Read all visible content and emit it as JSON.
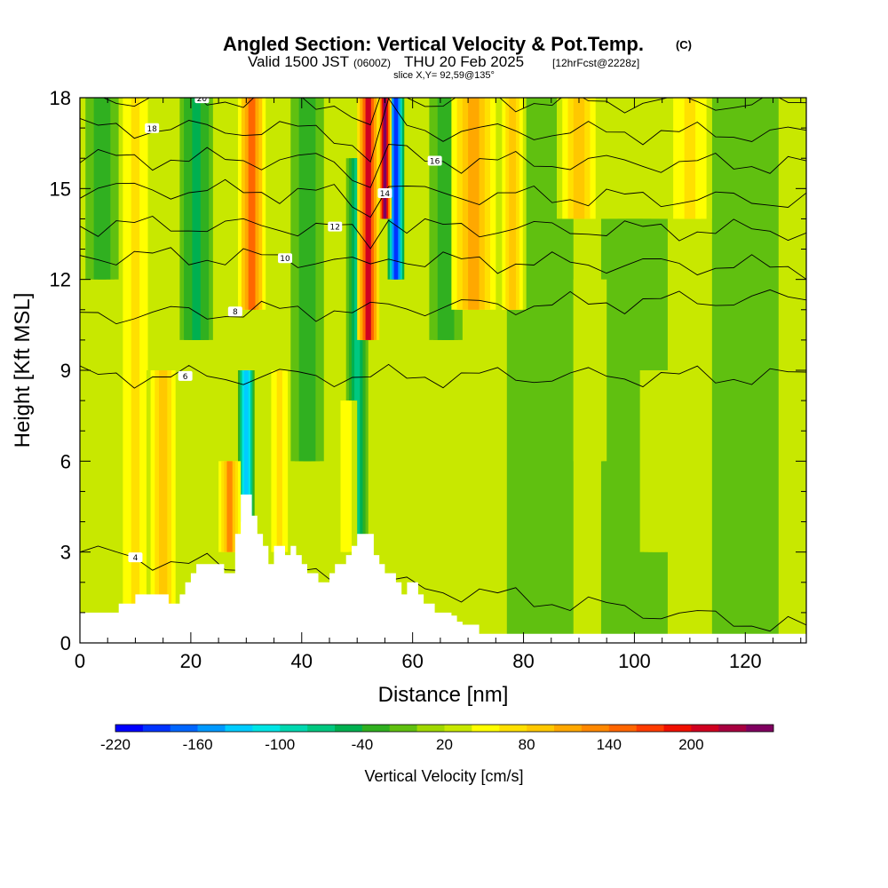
{
  "chart_data": {
    "type": "heatmap",
    "title": "Angled Section: Vertical Velocity & Pot.Temp.",
    "title_mark": "(C)",
    "subtitle_main": "Valid 1500 JST",
    "subtitle_zulu": "(0600Z)",
    "subtitle_date": "THU 20 Feb 2025",
    "subtitle_fcst": "[12hrFcst@2228z]",
    "slice_label": "slice X,Y= 92,59@135°",
    "xlabel": "Distance [nm]",
    "ylabel": "Height [Kft MSL]",
    "xlim": [
      0,
      131
    ],
    "ylim": [
      0,
      18
    ],
    "x_ticks": [
      0,
      20,
      40,
      60,
      80,
      100,
      120
    ],
    "y_ticks": [
      0,
      3,
      6,
      9,
      12,
      15,
      18
    ],
    "colorbar": {
      "label": "Vertical Velocity [cm/s]",
      "min": -220,
      "max": 260,
      "step": 20,
      "ticks": [
        -220,
        -160,
        -100,
        -40,
        20,
        80,
        140,
        200
      ],
      "colors": [
        "#0000ff",
        "#0033ff",
        "#0066ff",
        "#0099ff",
        "#00ccff",
        "#00e5e5",
        "#00d8b0",
        "#00c880",
        "#00b050",
        "#30b020",
        "#60c010",
        "#a0d800",
        "#c8e800",
        "#ffff00",
        "#ffe000",
        "#ffc800",
        "#ffa800",
        "#ff8800",
        "#ff6600",
        "#ff3c00",
        "#f01000",
        "#d00020",
        "#a80040",
        "#800060"
      ]
    },
    "terrain": {
      "x": [
        0,
        6,
        7,
        10,
        15,
        16,
        18,
        19,
        20,
        21,
        22,
        23,
        25,
        26,
        28,
        29,
        30,
        31,
        32,
        33,
        34,
        35,
        36,
        37,
        38,
        39,
        40,
        41,
        42,
        43,
        44,
        45,
        46,
        47,
        48,
        49,
        50,
        51,
        52,
        53,
        54,
        55,
        56,
        57,
        58,
        59,
        60,
        61,
        62,
        63,
        64,
        65,
        66,
        67,
        68,
        69,
        70,
        72,
        131
      ],
      "h": [
        1.0,
        1.0,
        1.3,
        1.6,
        1.6,
        1.3,
        1.6,
        2.0,
        2.3,
        2.6,
        2.6,
        2.6,
        2.6,
        2.3,
        3.6,
        4.9,
        4.9,
        4.2,
        3.6,
        3.2,
        2.6,
        3.2,
        3.2,
        2.9,
        3.2,
        2.9,
        2.6,
        2.3,
        2.3,
        2.0,
        2.0,
        2.3,
        2.6,
        2.6,
        2.9,
        3.2,
        3.6,
        3.6,
        3.6,
        2.9,
        2.6,
        2.3,
        2.3,
        2.0,
        1.6,
        2.0,
        2.0,
        1.6,
        1.3,
        1.3,
        1.0,
        1.0,
        1.0,
        0.9,
        0.7,
        0.6,
        0.6,
        0.3,
        0.3
      ]
    },
    "updraft_bands": [
      {
        "x": 10,
        "ybot": 0,
        "ytop": 18,
        "w": 60,
        "width": 3
      },
      {
        "x": 15,
        "ybot": 0,
        "ytop": 9,
        "w": 80,
        "width": 3
      },
      {
        "x": 27,
        "ybot": 3,
        "ytop": 6,
        "w": 120,
        "width": 2
      },
      {
        "x": 31,
        "ybot": 11,
        "ytop": 18,
        "w": 150,
        "width": 2.5
      },
      {
        "x": 36,
        "ybot": 3,
        "ytop": 9,
        "w": 60,
        "width": 2
      },
      {
        "x": 52,
        "ybot": 10,
        "ytop": 18,
        "w": 200,
        "width": 2
      },
      {
        "x": 55,
        "ybot": 14,
        "ytop": 18,
        "w": 250,
        "width": 1.2
      },
      {
        "x": 48,
        "ybot": 3,
        "ytop": 8,
        "w": 50,
        "width": 2
      },
      {
        "x": 71,
        "ybot": 11,
        "ytop": 18,
        "w": 100,
        "width": 4
      },
      {
        "x": 78,
        "ybot": 11,
        "ytop": 18,
        "w": 80,
        "width": 2.5
      },
      {
        "x": 90,
        "ybot": 14,
        "ytop": 18,
        "w": 80,
        "width": 4
      },
      {
        "x": 110,
        "ybot": 14,
        "ytop": 18,
        "w": 60,
        "width": 4
      },
      {
        "x": 92,
        "ybot": 6,
        "ytop": 12,
        "w": 30,
        "width": 3
      },
      {
        "x": 104,
        "ybot": 3,
        "ytop": 9,
        "w": 30,
        "width": 3
      }
    ],
    "downdraft_bands": [
      {
        "x": 4,
        "ybot": 12,
        "ytop": 18,
        "w": -40,
        "width": 3
      },
      {
        "x": 21,
        "ybot": 10,
        "ytop": 18,
        "w": -50,
        "width": 3
      },
      {
        "x": 30,
        "ybot": 4,
        "ytop": 9,
        "w": -140,
        "width": 1.5
      },
      {
        "x": 41,
        "ybot": 6,
        "ytop": 18,
        "w": -40,
        "width": 3
      },
      {
        "x": 50,
        "ybot": 3,
        "ytop": 16,
        "w": -80,
        "width": 2
      },
      {
        "x": 57,
        "ybot": 12,
        "ytop": 18,
        "w": -190,
        "width": 1.5
      },
      {
        "x": 66,
        "ybot": 10,
        "ytop": 18,
        "w": -40,
        "width": 3
      },
      {
        "x": 83,
        "ybot": 0,
        "ytop": 18,
        "w": -20,
        "width": 6
      },
      {
        "x": 100,
        "ybot": 0,
        "ytop": 14,
        "w": -20,
        "width": 6
      },
      {
        "x": 120,
        "ybot": 0,
        "ytop": 18,
        "w": -20,
        "width": 6
      }
    ],
    "pot_temp_contours": [
      {
        "value": 4,
        "label": "4",
        "y_left": 3.0,
        "y_right": 0.5
      },
      {
        "value": 6,
        "label": "6",
        "y_left": 8.8,
        "y_right": 8.8
      },
      {
        "value": 8,
        "label": "8",
        "y_left": 10.8,
        "y_right": 11.4
      },
      {
        "value": 10,
        "label": "10",
        "y_left": 12.8,
        "y_right": 12.4
      },
      {
        "value": 12,
        "label": "12",
        "y_left": 13.8,
        "y_right": 13.6
      },
      {
        "value": 14,
        "label": "14",
        "y_left": 15.0,
        "y_right": 14.6
      },
      {
        "value": 16,
        "label": "16",
        "y_left": 16.0,
        "y_right": 15.8
      },
      {
        "value": 18,
        "label": "18",
        "y_left": 17.0,
        "y_right": 16.8
      },
      {
        "value": 20,
        "label": "20",
        "y_left": 18.0,
        "y_right": 17.8
      }
    ]
  }
}
